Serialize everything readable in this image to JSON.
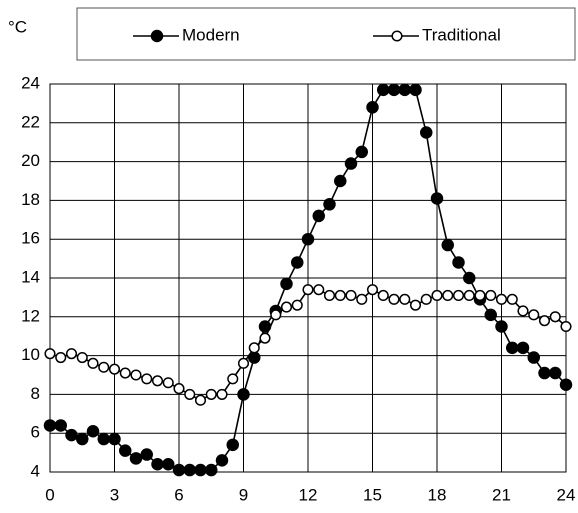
{
  "chart_data": {
    "type": "line",
    "y_label": "°C",
    "x": [
      0,
      0.5,
      1,
      1.5,
      2,
      2.5,
      3,
      3.5,
      4,
      4.5,
      5,
      5.5,
      6,
      6.5,
      7,
      7.5,
      8,
      8.5,
      9,
      9.5,
      10,
      10.5,
      11,
      11.5,
      12,
      12.5,
      13,
      13.5,
      14,
      14.5,
      15,
      15.5,
      16,
      16.5,
      17,
      17.5,
      18,
      18.5,
      19,
      19.5,
      20,
      20.5,
      21,
      21.5,
      22,
      22.5,
      23,
      23.5,
      24
    ],
    "series": [
      {
        "name": "Modern",
        "color": "#000000",
        "marker": "filled",
        "values": [
          6.4,
          6.4,
          5.9,
          5.7,
          6.1,
          5.7,
          5.7,
          5.1,
          4.7,
          4.9,
          4.4,
          4.4,
          4.1,
          4.1,
          4.1,
          4.1,
          4.6,
          5.4,
          8.0,
          9.9,
          11.5,
          12.3,
          13.7,
          14.8,
          16.0,
          17.2,
          17.8,
          19.0,
          19.9,
          20.5,
          22.8,
          23.7,
          23.7,
          23.7,
          23.7,
          21.5,
          18.1,
          15.7,
          14.8,
          14.0,
          12.9,
          12.1,
          11.5,
          10.4,
          10.4,
          9.9,
          9.1,
          9.1,
          8.5
        ]
      },
      {
        "name": "Traditional",
        "color": "#000000",
        "marker": "open",
        "values": [
          10.1,
          9.9,
          10.1,
          9.9,
          9.6,
          9.4,
          9.3,
          9.1,
          9.0,
          8.8,
          8.7,
          8.6,
          8.3,
          8.0,
          7.7,
          8.0,
          8.0,
          8.8,
          9.6,
          10.4,
          10.9,
          12.1,
          12.5,
          12.6,
          13.4,
          13.4,
          13.1,
          13.1,
          13.1,
          12.9,
          13.4,
          13.1,
          12.9,
          12.9,
          12.6,
          12.9,
          13.1,
          13.1,
          13.1,
          13.1,
          13.1,
          13.1,
          12.9,
          12.9,
          12.3,
          12.1,
          11.8,
          12.0,
          11.5
        ]
      }
    ],
    "xlim": [
      0,
      24
    ],
    "xticks": [
      0,
      3,
      6,
      9,
      12,
      15,
      18,
      21,
      24
    ],
    "ylim": [
      4,
      24
    ],
    "yticks": [
      4,
      6,
      8,
      10,
      12,
      14,
      16,
      18,
      20,
      22,
      24
    ],
    "grid": true,
    "legend": "top"
  }
}
